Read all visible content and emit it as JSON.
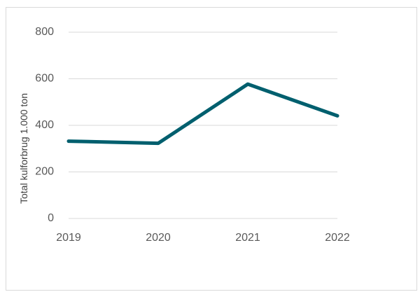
{
  "chart_data": {
    "type": "line",
    "title": "",
    "xlabel": "",
    "ylabel": "Total kulforbrug 1.000 ton",
    "categories": [
      "2019",
      "2020",
      "2021",
      "2022"
    ],
    "series": [
      {
        "values": [
          332,
          323,
          577,
          441
        ],
        "color": "#005F6E"
      }
    ],
    "ylim": [
      0,
      800
    ],
    "yticks": [
      0,
      200,
      400,
      600,
      800
    ],
    "grid": true,
    "legend": "none"
  }
}
